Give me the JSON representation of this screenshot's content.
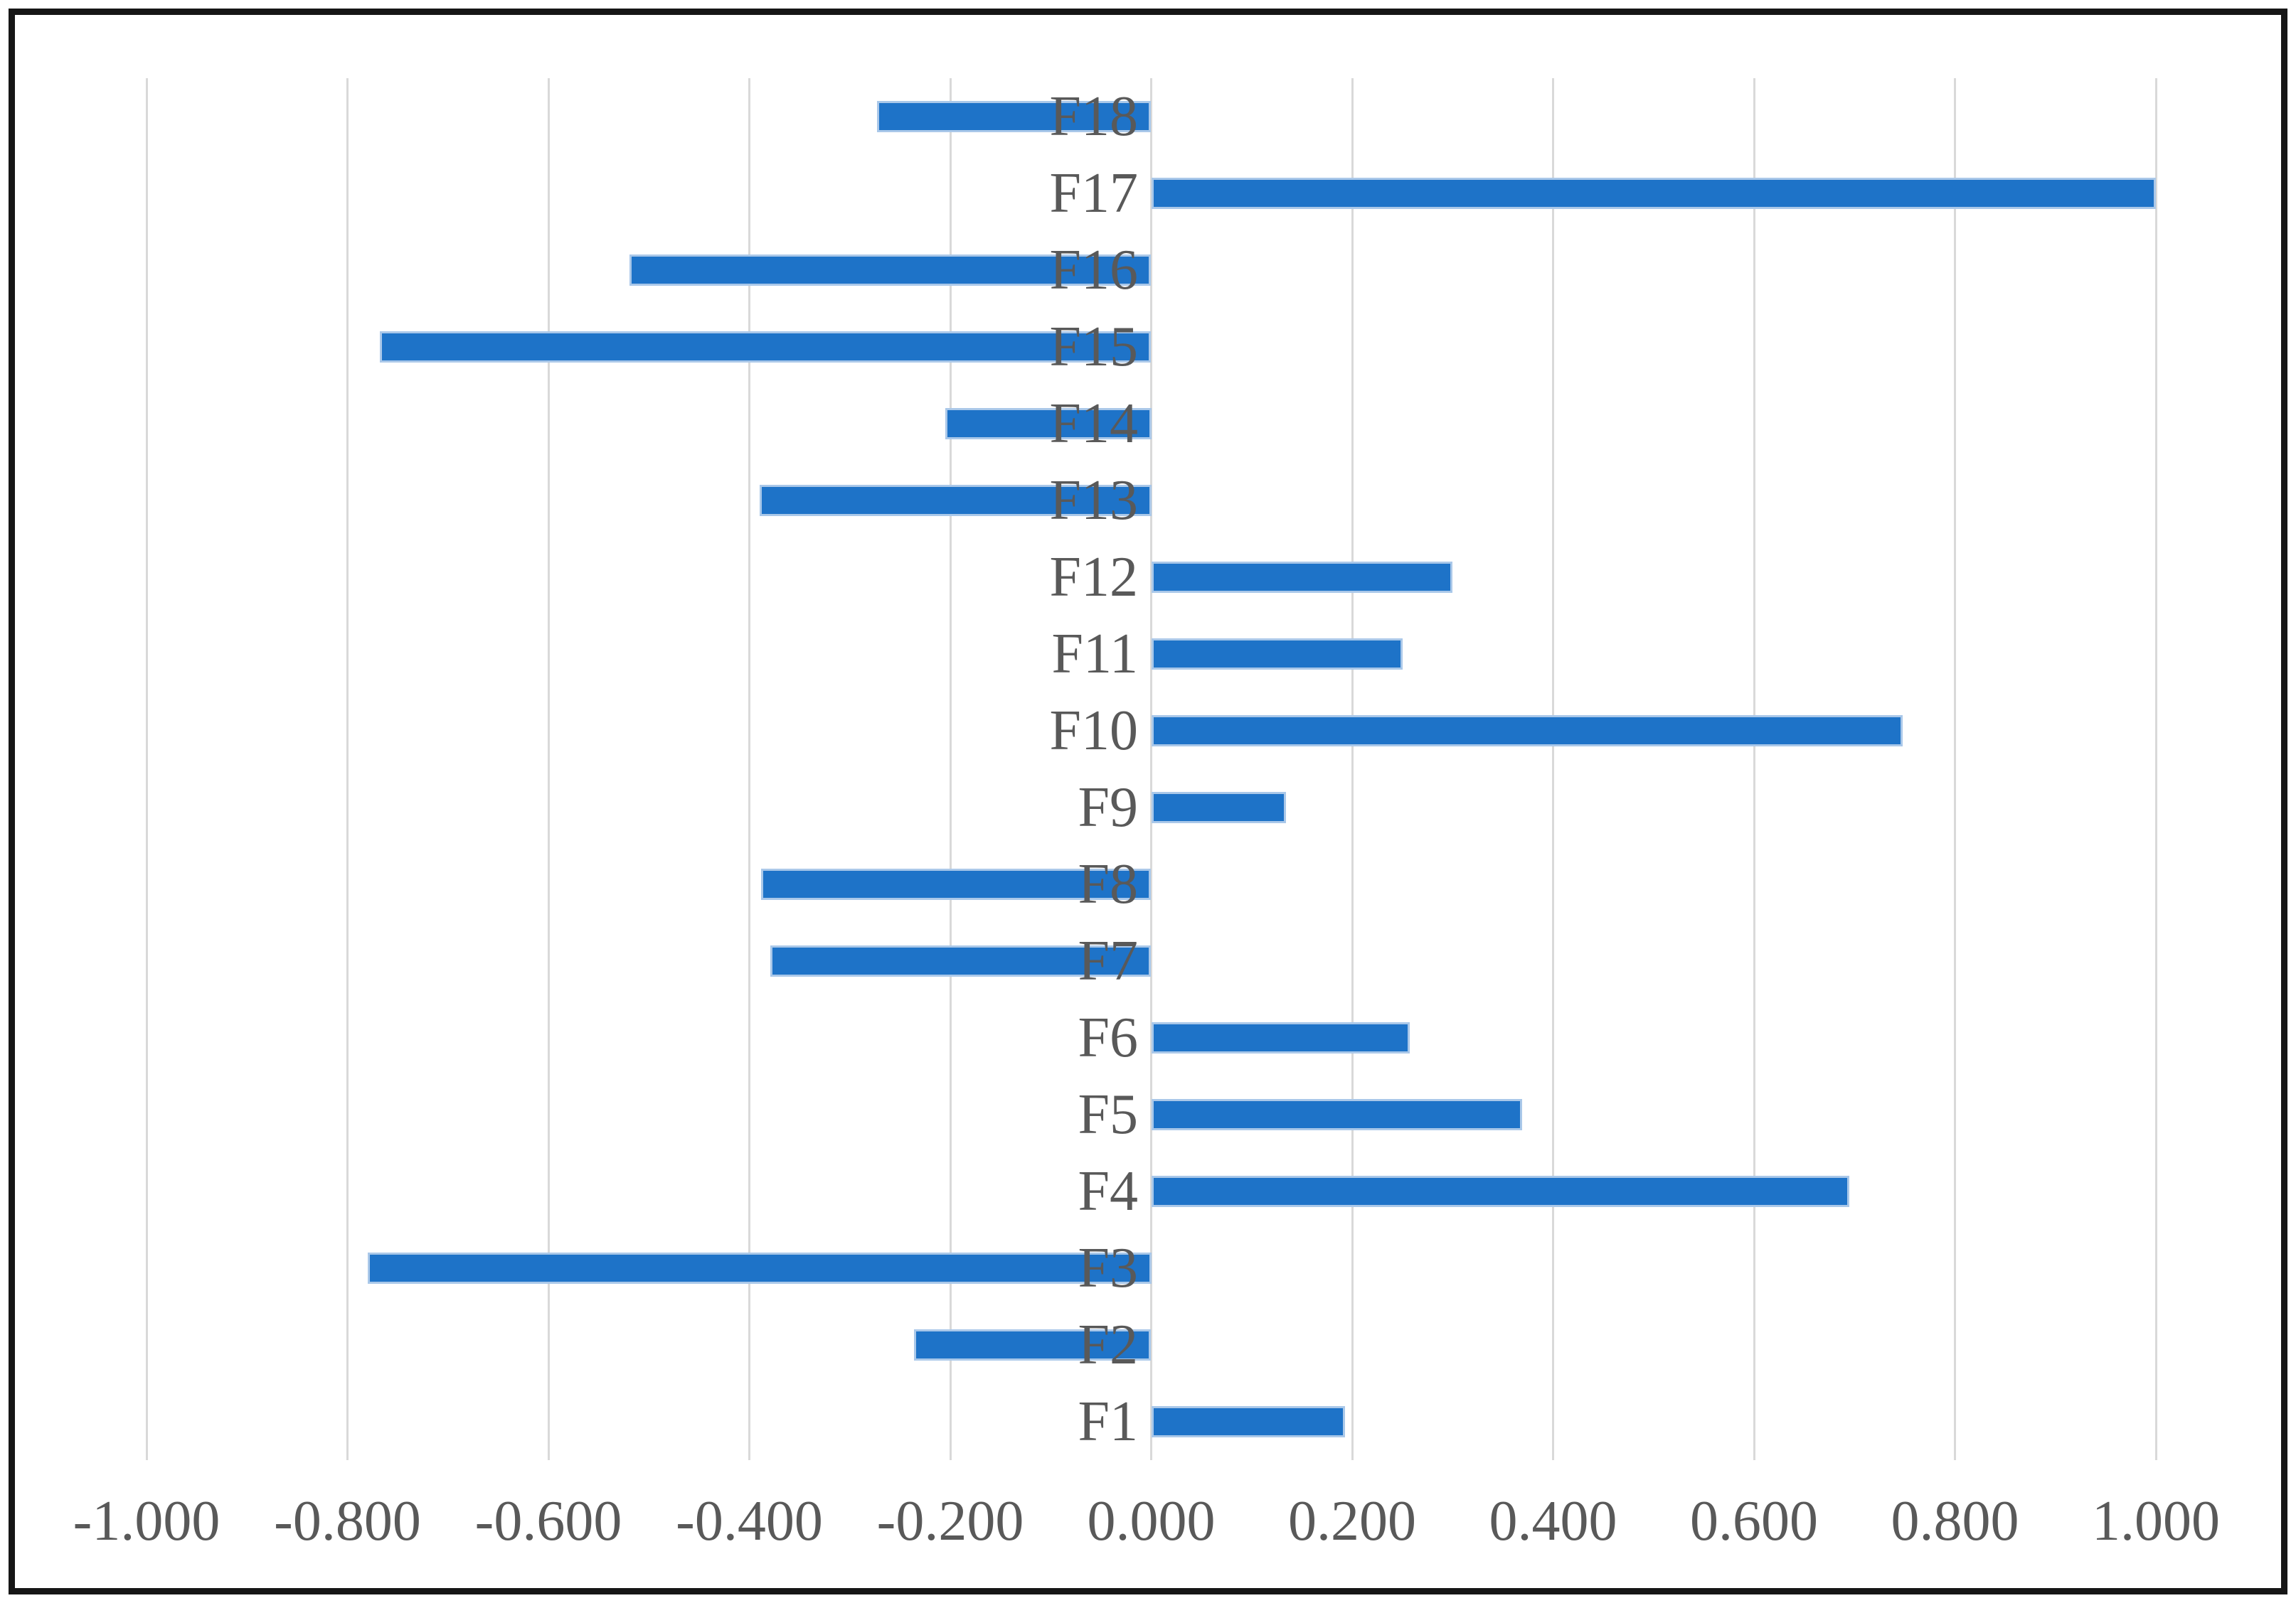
{
  "chart_data": {
    "type": "bar",
    "orientation": "horizontal",
    "title": "",
    "xlabel": "",
    "ylabel": "",
    "axis_range": [
      -1.0,
      1.0
    ],
    "grid": "vertical-gridlines-on",
    "legend": "none",
    "x_ticks": [
      "-1.000",
      "-0.800",
      "-0.600",
      "-0.400",
      "-0.200",
      "0.000",
      "0.200",
      "0.400",
      "0.600",
      "0.800",
      "1.000"
    ],
    "categories": [
      "F1",
      "F2",
      "F3",
      "F4",
      "F5",
      "F6",
      "F7",
      "F8",
      "F9",
      "F10",
      "F11",
      "F12",
      "F13",
      "F14",
      "F15",
      "F16",
      "F17",
      "F18"
    ],
    "values": [
      0.193,
      -0.236,
      -0.78,
      0.695,
      0.369,
      0.257,
      -0.379,
      -0.388,
      0.134,
      0.748,
      0.25,
      0.3,
      -0.39,
      -0.205,
      -0.768,
      -0.519,
      1.0,
      -0.273
    ],
    "rows_top_to_bottom": [
      {
        "label": "F18",
        "value": -0.273
      },
      {
        "label": "F17",
        "value": 1.0
      },
      {
        "label": "F16",
        "value": -0.519
      },
      {
        "label": "F15",
        "value": -0.768
      },
      {
        "label": "F14",
        "value": -0.205
      },
      {
        "label": "F13",
        "value": -0.39
      },
      {
        "label": "F12",
        "value": 0.3
      },
      {
        "label": "F11",
        "value": 0.25
      },
      {
        "label": "F10",
        "value": 0.748
      },
      {
        "label": "F9",
        "value": 0.134
      },
      {
        "label": "F8",
        "value": -0.388
      },
      {
        "label": "F7",
        "value": -0.379
      },
      {
        "label": "F6",
        "value": 0.257
      },
      {
        "label": "F5",
        "value": 0.369
      },
      {
        "label": "F4",
        "value": 0.695
      },
      {
        "label": "F3",
        "value": -0.78
      },
      {
        "label": "F2",
        "value": -0.236
      },
      {
        "label": "F1",
        "value": 0.193
      }
    ]
  },
  "colors": {
    "bar_fill": "#1e73c8",
    "bar_border": "#aac8e9",
    "gridline": "#d9d9d9",
    "text": "#595959",
    "frame_border": "#161616",
    "background": "#ffffff"
  }
}
